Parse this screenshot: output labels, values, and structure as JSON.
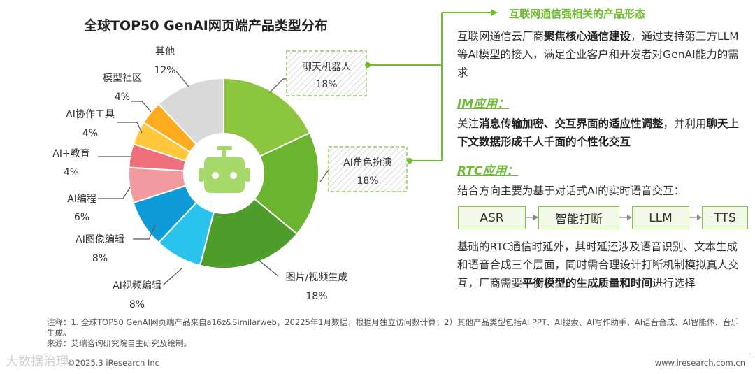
{
  "chart_data": {
    "type": "pie",
    "title": "全球TOP50 GenAI网页端产品类型分布",
    "slices": [
      {
        "name": "聊天机器人",
        "label": "18%",
        "value": 18,
        "color": "#8cc63e"
      },
      {
        "name": "AI角色扮演",
        "label": "18%",
        "value": 18,
        "color": "#6ab42f"
      },
      {
        "name": "图片/视频生成",
        "label": "18%",
        "value": 18,
        "color": "#4e9d2a"
      },
      {
        "name": "AI视频编辑",
        "label": "8%",
        "value": 8,
        "color": "#29c3ee"
      },
      {
        "name": "AI图像编辑",
        "label": "8%",
        "value": 8,
        "color": "#0e9bd8"
      },
      {
        "name": "AI编程",
        "label": "6%",
        "value": 6,
        "color": "#f29a9f"
      },
      {
        "name": "AI+教育",
        "label": "4%",
        "value": 4,
        "color": "#ef6e7c"
      },
      {
        "name": "AI协作工具",
        "label": "4%",
        "value": 4,
        "color": "#ffc83a"
      },
      {
        "name": "模型社区",
        "label": "4%",
        "value": 4,
        "color": "#ffab1e"
      },
      {
        "name": "其他",
        "label": "12%",
        "value": 12,
        "color": "#d9d9d9"
      }
    ],
    "center_icon": "robot-icon",
    "highlighted": [
      "聊天机器人",
      "AI角色扮演"
    ]
  },
  "side": {
    "header": "互联网通信强相关的产品形态",
    "p1": [
      "互联网通信云厂商",
      "聚焦核心通信建设",
      "，通过支持第三方LLM等AI模型的接入，满足企业客户和开发者对GenAI能力的需求"
    ],
    "im_title": "IM应用：",
    "p2": [
      "关注",
      "消息传输加密、交互界面的适应性调整",
      "，并利用",
      "聊天上下文数据形成千人千面的个性化交互"
    ],
    "rtc_title": "RTC应用：",
    "p3": "结合方向主要为基于对话式AI的实时语音交互：",
    "flow": [
      "ASR",
      "智能打断",
      "LLM",
      "TTS"
    ],
    "p4": [
      "基础的RTC通信时延外，其时延还涉及语音识别、文本生成和语音合成三个层面，同时需合理设计打断机制模拟真人交互，厂商需要",
      "平衡模型的生成质量和时间",
      "进行选择"
    ]
  },
  "notes": {
    "line1": "注释：1. 全球TOP50 GenAI网页端产品来自a16z&Similarweb，20225年1月数据，根据月独立访问数计算；2）其他产品类型包括AI PPT、AI搜索、AI写作助手、AI语音合成、AI智能体、音乐生成。",
    "line2": "来源：艾瑞咨询研究院自主研究及绘制。"
  },
  "footer": {
    "copyright": "©2025.3 iResearch Inc",
    "website": "www.iresearch.com.cn",
    "watermark": "大数据治理"
  },
  "colors": {
    "accent": "#6ebd2e",
    "box_border": "#8fd05a"
  }
}
